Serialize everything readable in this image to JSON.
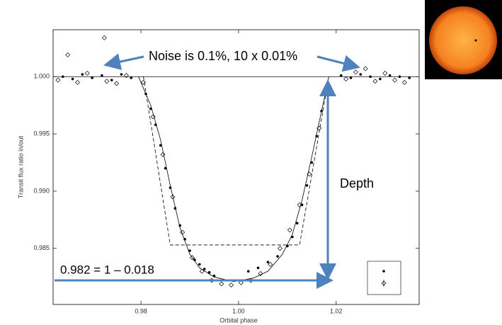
{
  "chart_data": {
    "type": "scatter",
    "x_label": "Orbital phase",
    "y_label": "Transit flux ratio in/out",
    "xlim": [
      0.962,
      1.037
    ],
    "ylim": [
      0.9801,
      1.0041
    ],
    "xticks": [
      0.98,
      {
        "value": 1.0,
        "label": "1.00"
      },
      1.02
    ],
    "yticks": [
      {
        "value": 1.0,
        "label": "1.000"
      },
      {
        "value": 0.995,
        "label": "0.995"
      },
      {
        "value": 0.99,
        "label": "0.990"
      },
      {
        "value": 0.985,
        "label": "0.985"
      }
    ],
    "hline": 1.0,
    "annotations": [
      "Noise is 0.1%, 10 x 0.01%",
      "Depth",
      "0.982 = 1 – 0.018"
    ],
    "series": [
      {
        "mode": "markers",
        "marker": "filled-circle",
        "color": "#000000",
        "x": [
          0.964,
          0.966,
          0.968,
          0.97,
          0.972,
          0.974,
          0.976,
          0.978,
          0.981,
          0.982,
          0.983,
          0.984,
          0.985,
          0.986,
          0.987,
          0.988,
          0.989,
          0.99,
          0.991,
          0.992,
          0.993,
          0.994,
          0.995,
          1.002,
          1.004,
          1.006,
          1.008,
          1.01,
          1.011,
          1.012,
          1.013,
          1.014,
          1.015,
          1.016,
          1.017,
          1.018,
          1.021,
          1.023,
          1.025,
          1.027,
          1.029,
          1.031,
          1.033,
          1.035
        ],
        "values": [
          1.0,
          0.9998,
          1.0002,
          0.9999,
          1.0001,
          0.9997,
          1.0002,
          0.9999,
          0.9985,
          0.9972,
          0.9958,
          0.994,
          0.992,
          0.9903,
          0.9885,
          0.987,
          0.9858,
          0.9848,
          0.984,
          0.9836,
          0.9832,
          0.9829,
          0.9826,
          0.983,
          0.9833,
          0.9838,
          0.9843,
          0.9852,
          0.986,
          0.9872,
          0.9888,
          0.9905,
          0.9925,
          0.9948,
          0.997,
          0.999,
          1.0001,
          0.9999,
          1.0002,
          1.0,
          0.9998,
          1.0001,
          1.0,
          0.9999
        ]
      },
      {
        "mode": "markers",
        "marker": "open-diamond",
        "color": "#000000",
        "x": [
          0.963,
          0.965,
          0.967,
          0.969,
          0.9725,
          0.973,
          0.975,
          0.977,
          0.9805,
          0.9825,
          0.9845,
          0.9865,
          0.9885,
          0.9905,
          0.9925,
          0.9945,
          0.9965,
          0.9985,
          1.0005,
          1.0025,
          1.0045,
          1.0065,
          1.0085,
          1.0105,
          1.0125,
          1.0145,
          1.0165,
          1.0185,
          1.022,
          1.024,
          1.026,
          1.028,
          1.03,
          1.032,
          1.034
        ],
        "values": [
          0.9997,
          1.0019,
          0.9995,
          1.0003,
          1.0034,
          0.9996,
          0.9994,
          1.0001,
          0.9995,
          0.9965,
          0.9932,
          0.9895,
          0.9864,
          0.9842,
          0.983,
          0.9822,
          0.9819,
          0.9818,
          0.982,
          0.9822,
          0.9828,
          0.9836,
          0.985,
          0.9866,
          0.9888,
          0.9915,
          0.9955,
          0.9992,
          0.9998,
          1.0004,
          1.0007,
          0.9996,
          1.0003,
          0.9997,
          0.9995
        ]
      },
      {
        "mode": "line",
        "dash": false,
        "color": "#000000",
        "x": [
          0.9795,
          0.982,
          0.984,
          0.986,
          0.988,
          0.99,
          0.992,
          0.995,
          0.999,
          1.003,
          1.006,
          1.009,
          1.011,
          1.013,
          1.015,
          1.017,
          1.0185
        ],
        "values": [
          1.0,
          0.9975,
          0.9945,
          0.9905,
          0.9868,
          0.9845,
          0.9833,
          0.9825,
          0.9821,
          0.9824,
          0.983,
          0.9845,
          0.9862,
          0.9892,
          0.993,
          0.997,
          1.0
        ]
      },
      {
        "mode": "line",
        "dash": true,
        "color": "#000000",
        "x": [
          0.9805,
          0.986,
          1.0125,
          1.0185
        ],
        "values": [
          1.0,
          0.9853,
          0.9853,
          1.0
        ]
      }
    ]
  }
}
